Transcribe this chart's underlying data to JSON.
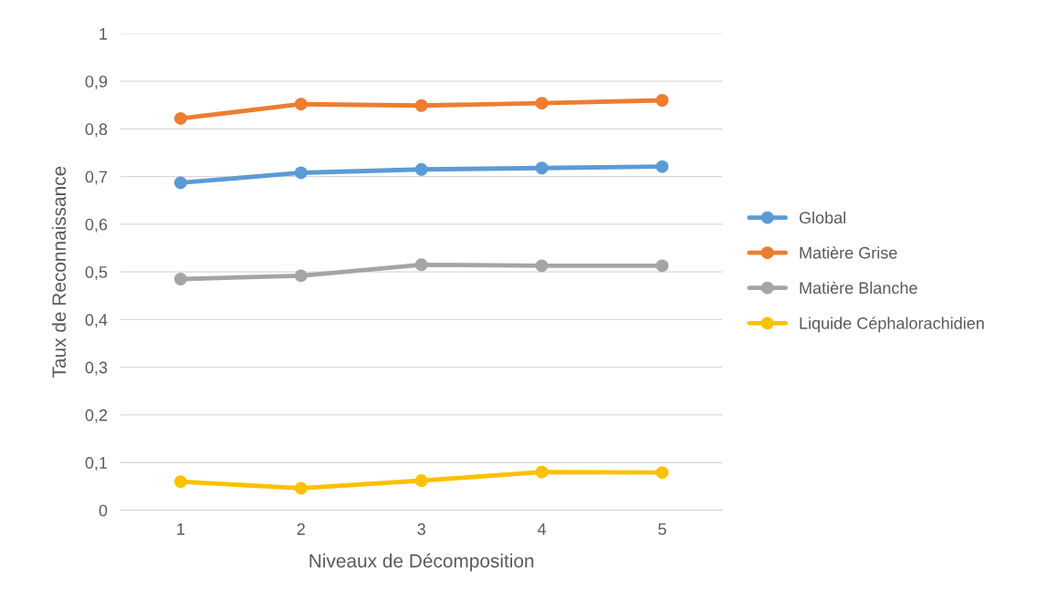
{
  "chart_data": {
    "type": "line",
    "xlabel": "Niveaux de Décomposition",
    "ylabel": "Taux de Reconnaissance",
    "categories": [
      "1",
      "2",
      "3",
      "4",
      "5"
    ],
    "series": [
      {
        "name": "Global",
        "color": "#5b9bd5",
        "values": [
          0.687,
          0.708,
          0.715,
          0.718,
          0.721
        ]
      },
      {
        "name": "Matière Grise",
        "color": "#ed7d31",
        "values": [
          0.822,
          0.852,
          0.849,
          0.854,
          0.86
        ]
      },
      {
        "name": "Matière Blanche",
        "color": "#a5a5a5",
        "values": [
          0.485,
          0.492,
          0.515,
          0.513,
          0.513
        ]
      },
      {
        "name": "Liquide Céphalorachidien",
        "color": "#ffc000",
        "values": [
          0.06,
          0.046,
          0.062,
          0.08,
          0.079
        ]
      }
    ],
    "ylim": [
      0,
      1
    ],
    "yticks": [
      0,
      {
        "value": 0.1,
        "label": "0,1"
      },
      {
        "value": 0.2,
        "label": "0,2"
      },
      {
        "value": 0.3,
        "label": "0,3"
      },
      {
        "value": 0.4,
        "label": "0,4"
      },
      {
        "value": 0.5,
        "label": "0,5"
      },
      {
        "value": 0.6,
        "label": "0,6"
      },
      {
        "value": 0.7,
        "label": "0,7"
      },
      {
        "value": 0.8,
        "label": "0,8"
      },
      {
        "value": 0.9,
        "label": "0,9"
      },
      1
    ],
    "grid": "y",
    "legend": "right",
    "marker": "circle",
    "line_style": "solid"
  }
}
